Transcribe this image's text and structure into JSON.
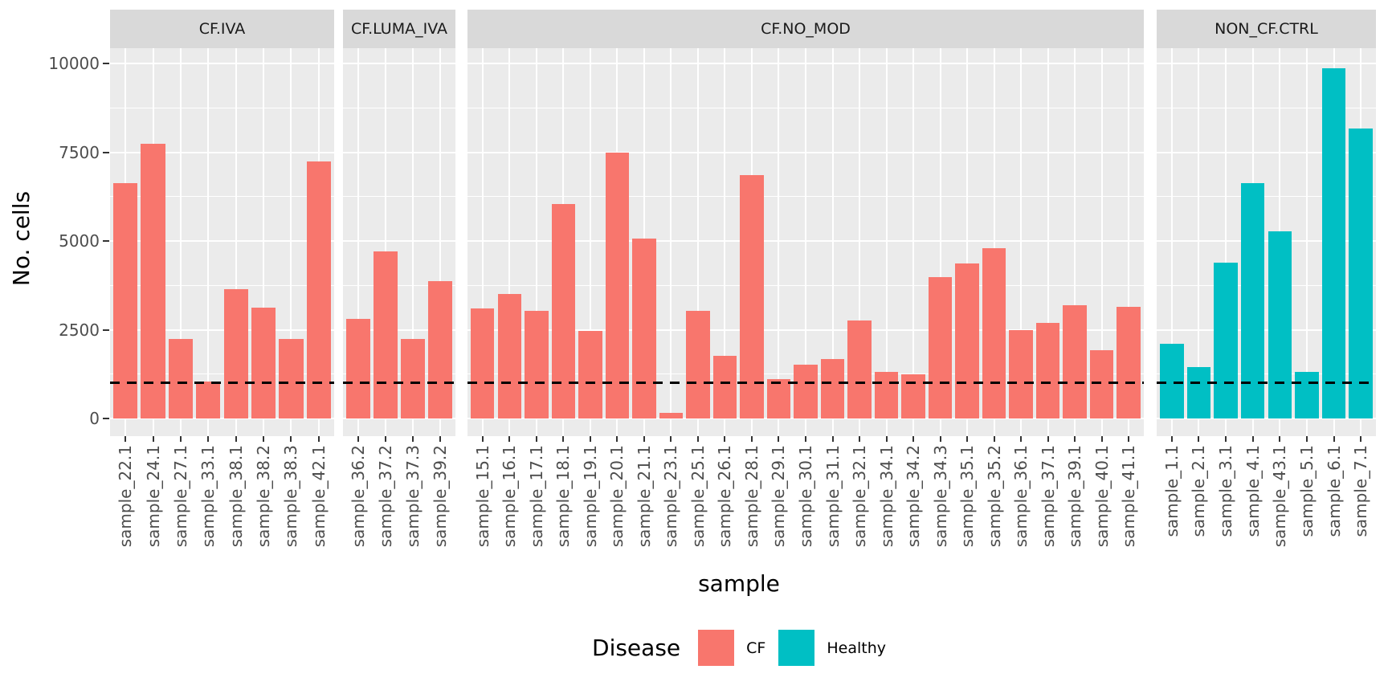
{
  "y_axis": {
    "title": "No. cells",
    "ticks": [
      0,
      2500,
      5000,
      7500,
      10000
    ],
    "tick_labels": [
      "0",
      "2500",
      "5000",
      "7500",
      "10000"
    ],
    "minor_ticks": [
      1250,
      3750,
      6250,
      8750
    ]
  },
  "x_axis": {
    "title": "sample"
  },
  "reference_line": {
    "value": 1000,
    "style": "dashed",
    "color": "#000000"
  },
  "legend": {
    "title": "Disease",
    "items": [
      {
        "label": "CF",
        "color": "#F8766D"
      },
      {
        "label": "Healthy",
        "color": "#00BFC4"
      }
    ]
  },
  "colors": {
    "panel_background": "#EBEBEB",
    "strip_background": "#D9D9D9",
    "gridline": "#FFFFFF",
    "axis_text": "#4D4D4D",
    "strip_text": "#1A1A1A",
    "tick_mark": "#333333"
  },
  "chart_data": {
    "type": "bar",
    "title": "",
    "xlabel": "sample",
    "ylabel": "No. cells",
    "ylim": [
      0,
      10350
    ],
    "grid": true,
    "legend_position": "bottom",
    "hline": 1000,
    "facets": [
      {
        "label": "CF.IVA",
        "group": "CF",
        "samples": [
          "sample_22.1",
          "sample_24.1",
          "sample_27.1",
          "sample_33.1",
          "sample_38.1",
          "sample_38.2",
          "sample_38.3",
          "sample_42.1"
        ],
        "values": [
          6620,
          7740,
          2230,
          1030,
          3640,
          3130,
          2250,
          7230
        ]
      },
      {
        "label": "CF.LUMA_IVA",
        "group": "CF",
        "samples": [
          "sample_36.2",
          "sample_37.2",
          "sample_37.3",
          "sample_39.2"
        ],
        "values": [
          2800,
          4700,
          2240,
          3880
        ]
      },
      {
        "label": "CF.NO_MOD",
        "group": "CF",
        "samples": [
          "sample_15.1",
          "sample_16.1",
          "sample_17.1",
          "sample_18.1",
          "sample_19.1",
          "sample_20.1",
          "sample_21.1",
          "sample_23.1",
          "sample_25.1",
          "sample_26.1",
          "sample_28.1",
          "sample_29.1",
          "sample_30.1",
          "sample_31.1",
          "sample_32.1",
          "sample_34.1",
          "sample_34.2",
          "sample_34.3",
          "sample_35.1",
          "sample_35.2",
          "sample_36.1",
          "sample_37.1",
          "sample_39.1",
          "sample_40.1",
          "sample_41.1"
        ],
        "values": [
          3090,
          3500,
          3040,
          6050,
          2460,
          7490,
          5060,
          150,
          3030,
          1760,
          6850,
          1110,
          1520,
          1680,
          2770,
          1310,
          1240,
          3980,
          4370,
          4800,
          2500,
          2700,
          3200,
          1930,
          3150
        ]
      },
      {
        "label": "NON_CF.CTRL",
        "group": "Healthy",
        "samples": [
          "sample_1.1",
          "sample_2.1",
          "sample_3.1",
          "sample_4.1",
          "sample_43.1",
          "sample_5.1",
          "sample_6.1",
          "sample_7.1"
        ],
        "values": [
          2100,
          1440,
          4390,
          6630,
          5280,
          1310,
          9860,
          8160
        ]
      }
    ]
  }
}
